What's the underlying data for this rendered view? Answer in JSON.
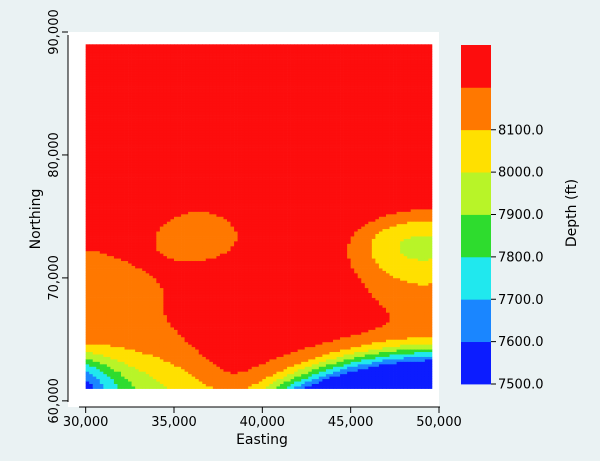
{
  "chart_data": {
    "type": "heatmap",
    "title": "",
    "xlabel": "Easting",
    "ylabel": "Northing",
    "colorbar_label": "Depth (ft)",
    "xlim": [
      29000,
      50000
    ],
    "ylim": [
      59500,
      90000
    ],
    "data_extent": {
      "x": [
        30000,
        49500
      ],
      "y": [
        61000,
        89000
      ]
    },
    "x_ticks": [
      {
        "value": 30000,
        "label": "30,000"
      },
      {
        "value": 35000,
        "label": "35,000"
      },
      {
        "value": 40000,
        "label": "40,000"
      },
      {
        "value": 45000,
        "label": "45,000"
      },
      {
        "value": 50000,
        "label": "50,000"
      }
    ],
    "y_ticks": [
      {
        "value": 60000,
        "label": "60,000"
      },
      {
        "value": 70000,
        "label": "70,000"
      },
      {
        "value": 80000,
        "label": "80,000"
      },
      {
        "value": 90000,
        "label": "90,000"
      }
    ],
    "levels": [
      {
        "min": 7500,
        "max": 7600,
        "color": "#0c1cff"
      },
      {
        "min": 7600,
        "max": 7700,
        "color": "#1a86ff"
      },
      {
        "min": 7700,
        "max": 7800,
        "color": "#20e8ee"
      },
      {
        "min": 7800,
        "max": 7900,
        "color": "#2edc2e"
      },
      {
        "min": 7900,
        "max": 8000,
        "color": "#b8f428"
      },
      {
        "min": 8000,
        "max": 8100,
        "color": "#ffe000"
      },
      {
        "min": 8100,
        "max": 8200,
        "color": "#ff7800"
      },
      {
        "min": 8200,
        "max": 8300,
        "color": "#fd0d0d"
      }
    ],
    "colorbar_ticks": [
      "7500.0",
      "7600.0",
      "7700.0",
      "7800.0",
      "7900.0",
      "8000.0",
      "8100.0"
    ],
    "grid": false,
    "legend": "colorbar-right",
    "colors": {
      "background": "#eaf2f3",
      "plot_background": "#ffffff"
    }
  }
}
